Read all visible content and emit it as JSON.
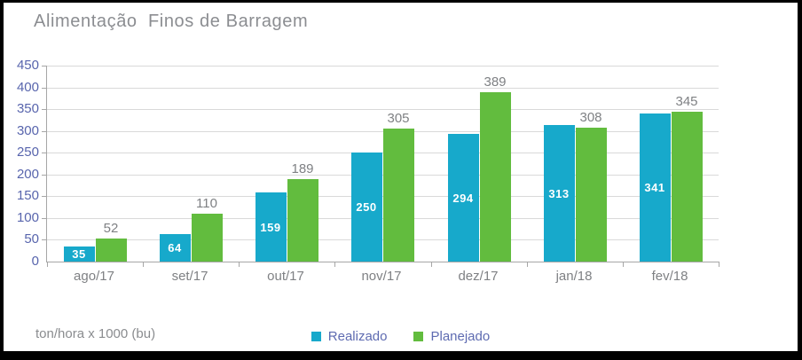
{
  "title": "Alimentação  Finos de Barragem",
  "unit_label": "ton/hora x 1000 (bu)",
  "colors": {
    "realizado": "#17a9cb",
    "planejado": "#62bc3e",
    "axis_line": "#a6a6a6",
    "gridline": "#d9d9d9",
    "y_label_text": "#5865ad",
    "x_label_text": "#7f8184",
    "title_text": "#8b8d91",
    "legend_text": "#5e6bb1",
    "inside_label_text": "#ffffff",
    "above_label_text": "#7f8184"
  },
  "chart_data": {
    "type": "bar",
    "title": "Alimentação Finos de Barragem",
    "categories": [
      "ago/17",
      "set/17",
      "out/17",
      "nov/17",
      "dez/17",
      "jan/18",
      "fev/18"
    ],
    "series": [
      {
        "name": "Realizado",
        "color_key": "realizado",
        "label_style": "inside-white",
        "values": [
          35,
          64,
          159,
          250,
          294,
          313,
          341
        ]
      },
      {
        "name": "Planejado",
        "color_key": "planejado",
        "label_style": "above-gray",
        "values": [
          52,
          110,
          189,
          305,
          389,
          308,
          345
        ]
      }
    ],
    "xlabel": "",
    "ylabel": "ton/hora x 1000 (bu)",
    "ylim": [
      0,
      450
    ],
    "ytick_step": 50,
    "grid": true,
    "legend_position": "bottom-center"
  }
}
